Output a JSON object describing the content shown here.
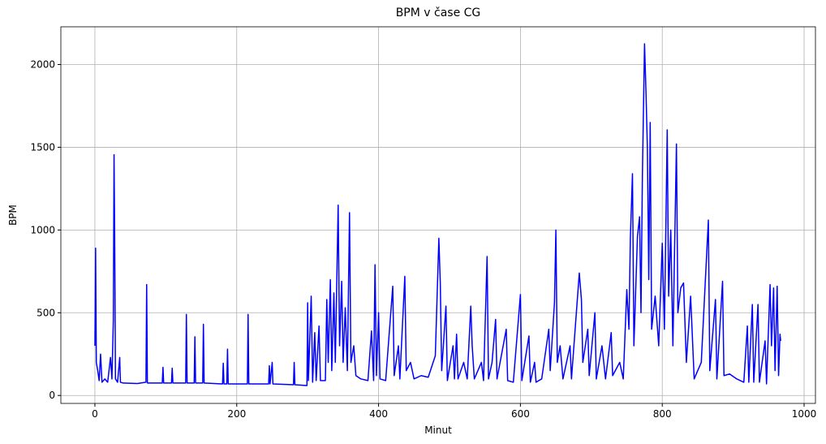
{
  "chart_data": {
    "type": "line",
    "title": "BPM v čase CG",
    "x_label": "Minut",
    "y_label": "BPM",
    "color": "#0000ff",
    "grid": true,
    "xlim": [
      -48,
      1016
    ],
    "ylim": [
      -48,
      2228
    ],
    "xticks": [
      0,
      200,
      400,
      600,
      800,
      1000
    ],
    "yticks": [
      0,
      500,
      1000,
      1500,
      2000
    ],
    "x": [
      0,
      1,
      2,
      4,
      6,
      8,
      10,
      14,
      18,
      22,
      24,
      26,
      27,
      28,
      29,
      32,
      35,
      36,
      40,
      60,
      72,
      73,
      74,
      95,
      96,
      97,
      108,
      109,
      110,
      128,
      129,
      130,
      140,
      141,
      142,
      152,
      153,
      154,
      180,
      181,
      182,
      186,
      187,
      188,
      215,
      216,
      217,
      245,
      246,
      247,
      250,
      251,
      280,
      281,
      282,
      299,
      300,
      301,
      305,
      307,
      310,
      312,
      316,
      318,
      325,
      327,
      329,
      332,
      334,
      337,
      339,
      343,
      345,
      348,
      350,
      353,
      356,
      359,
      361,
      365,
      368,
      375,
      385,
      390,
      393,
      395,
      397,
      400,
      402,
      410,
      420,
      422,
      428,
      430,
      437,
      439,
      445,
      450,
      460,
      470,
      480,
      485,
      487,
      489,
      495,
      497,
      505,
      507,
      510,
      512,
      520,
      525,
      530,
      532,
      535,
      545,
      548,
      553,
      555,
      560,
      565,
      567,
      580,
      582,
      590,
      600,
      602,
      612,
      614,
      620,
      622,
      630,
      640,
      642,
      648,
      650,
      652,
      656,
      660,
      670,
      672,
      683,
      686,
      688,
      695,
      697,
      705,
      707,
      715,
      720,
      728,
      730,
      740,
      745,
      750,
      753,
      755,
      758,
      760,
      765,
      768,
      770,
      772,
      775,
      777,
      779,
      781,
      783,
      785,
      790,
      795,
      800,
      803,
      807,
      809,
      812,
      815,
      820,
      822,
      826,
      830,
      834,
      840,
      845,
      855,
      865,
      867,
      875,
      877,
      885,
      887,
      895,
      905,
      915,
      920,
      922,
      927,
      929,
      935,
      937,
      945,
      947,
      952,
      954,
      957,
      959,
      962,
      964,
      966,
      967
    ],
    "values": [
      300,
      890,
      200,
      150,
      90,
      250,
      80,
      100,
      80,
      230,
      100,
      450,
      1455,
      890,
      100,
      80,
      230,
      80,
      75,
      72,
      80,
      670,
      75,
      75,
      170,
      75,
      75,
      165,
      75,
      75,
      490,
      75,
      75,
      355,
      75,
      75,
      430,
      75,
      70,
      195,
      70,
      70,
      280,
      70,
      70,
      490,
      70,
      70,
      180,
      70,
      200,
      70,
      65,
      200,
      65,
      60,
      560,
      90,
      600,
      80,
      380,
      90,
      420,
      90,
      90,
      580,
      200,
      700,
      150,
      620,
      200,
      1150,
      300,
      690,
      200,
      530,
      150,
      1105,
      200,
      300,
      120,
      100,
      90,
      390,
      90,
      790,
      120,
      500,
      100,
      90,
      660,
      120,
      300,
      100,
      720,
      150,
      200,
      100,
      120,
      110,
      240,
      950,
      680,
      150,
      540,
      90,
      300,
      100,
      370,
      100,
      200,
      100,
      540,
      300,
      100,
      200,
      90,
      840,
      100,
      200,
      460,
      100,
      400,
      90,
      80,
      610,
      90,
      360,
      80,
      200,
      80,
      100,
      400,
      150,
      560,
      1000,
      200,
      300,
      100,
      300,
      100,
      740,
      580,
      200,
      400,
      120,
      500,
      100,
      300,
      100,
      380,
      120,
      200,
      100,
      640,
      400,
      950,
      1340,
      300,
      960,
      1080,
      500,
      1330,
      2125,
      1840,
      1500,
      700,
      1650,
      400,
      600,
      300,
      920,
      400,
      1605,
      600,
      1000,
      300,
      1520,
      500,
      650,
      680,
      200,
      600,
      100,
      200,
      1060,
      150,
      580,
      100,
      690,
      120,
      130,
      100,
      80,
      420,
      80,
      550,
      80,
      550,
      80,
      330,
      70,
      670,
      300,
      650,
      150,
      660,
      120,
      370,
      330
    ]
  }
}
